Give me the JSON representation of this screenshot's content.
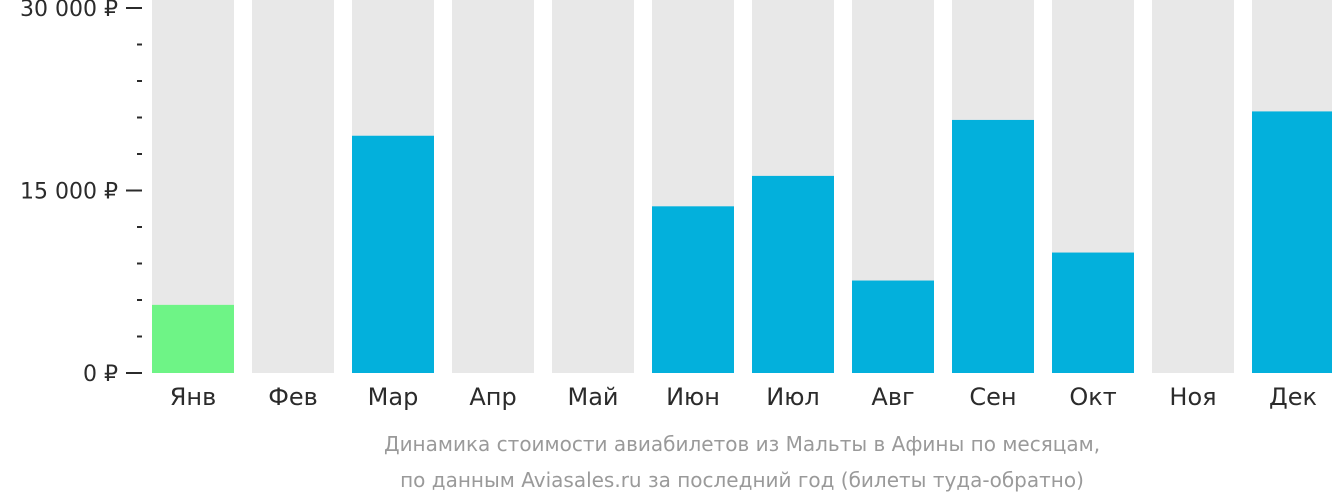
{
  "chart_data": {
    "type": "bar",
    "title": "",
    "xlabel": "",
    "ylabel": "",
    "ylim": [
      0,
      30000
    ],
    "categories": [
      "Янв",
      "Фев",
      "Мар",
      "Апр",
      "Май",
      "Июн",
      "Июл",
      "Авг",
      "Сен",
      "Окт",
      "Ноя",
      "Дек"
    ],
    "values": [
      5600,
      null,
      19500,
      null,
      null,
      13700,
      16200,
      7600,
      20800,
      9900,
      null,
      21500
    ],
    "y_ticks": [
      {
        "value": 30000,
        "label": "30 000 ₽"
      },
      {
        "value": 15000,
        "label": "15 000 ₽"
      },
      {
        "value": 0,
        "label": "0 ₽"
      }
    ],
    "minor_ticks_between_majors": 4,
    "highlight_index": 0,
    "grid": false,
    "legend": "none",
    "caption": [
      "Динамика стоимости авиабилетов из Мальты в Афины по месяцам,",
      "по данным Aviasales.ru за последний год (билеты туда-обратно)"
    ]
  },
  "colors": {
    "bar": "#03b0dc",
    "highlight": "#6ef486",
    "background_bar": "#e8e8e8",
    "text": "#2b2b2b",
    "caption": "#9a9a9a"
  }
}
